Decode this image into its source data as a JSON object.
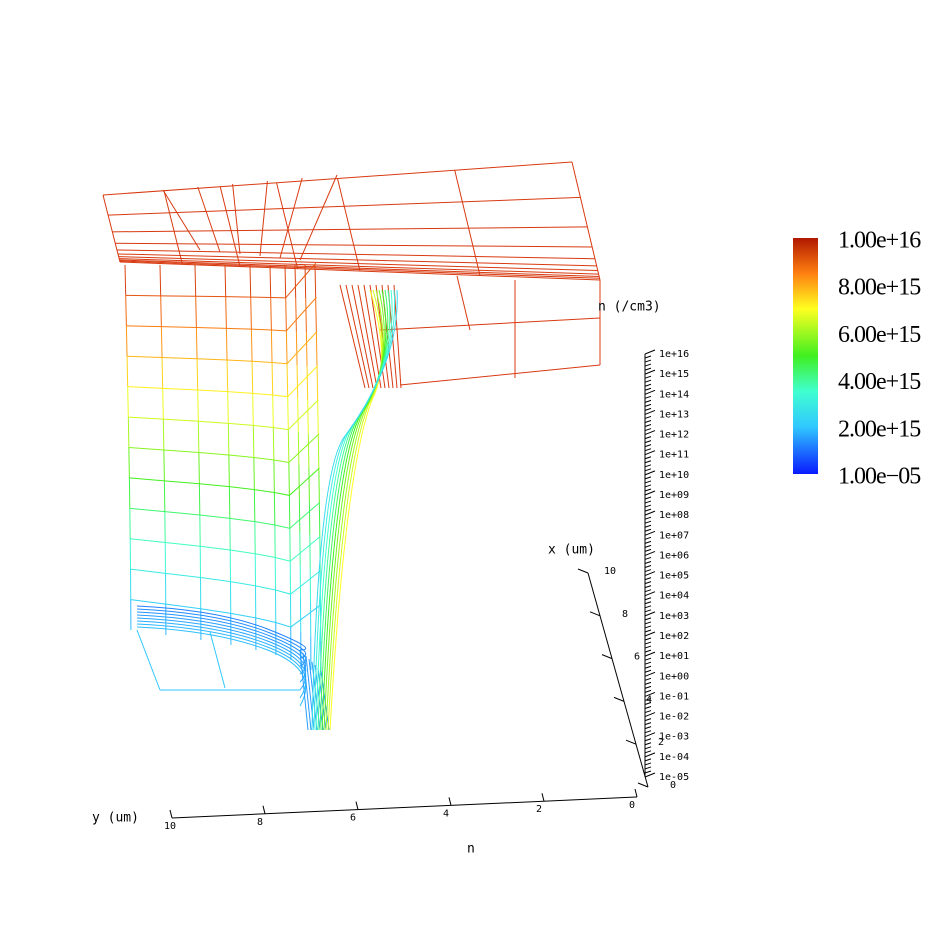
{
  "chart_data": {
    "type": "surface3d",
    "title": "n",
    "xlabel": "x (um)",
    "ylabel": "y (um)",
    "zlabel": "n (/cm3)",
    "xlim": [
      0,
      10
    ],
    "xticks": [
      0,
      2,
      4,
      6,
      8,
      10
    ],
    "ylim": [
      0,
      10
    ],
    "yticks": [
      0,
      2,
      4,
      6,
      8,
      10
    ],
    "zscale": "log",
    "zlim": [
      1e-05,
      1e+16
    ],
    "zticks": [
      {
        "value": 1e-05,
        "label": "1e-05"
      },
      {
        "value": 0.0001,
        "label": "1e-04"
      },
      {
        "value": 0.001,
        "label": "1e-03"
      },
      {
        "value": 0.01,
        "label": "1e-02"
      },
      {
        "value": 0.1,
        "label": "1e-01"
      },
      {
        "value": 1,
        "label": "1e+00"
      },
      {
        "value": 10,
        "label": "1e+01"
      },
      {
        "value": 100,
        "label": "1e+02"
      },
      {
        "value": 1000,
        "label": "1e+03"
      },
      {
        "value": 10000,
        "label": "1e+04"
      },
      {
        "value": 100000,
        "label": "1e+05"
      },
      {
        "value": 1000000,
        "label": "1e+06"
      },
      {
        "value": 10000000,
        "label": "1e+07"
      },
      {
        "value": 100000000,
        "label": "1e+08"
      },
      {
        "value": 1000000000,
        "label": "1e+09"
      },
      {
        "value": 10000000000,
        "label": "1e+10"
      },
      {
        "value": 100000000000,
        "label": "1e+11"
      },
      {
        "value": 1000000000000,
        "label": "1e+12"
      },
      {
        "value": 10000000000000,
        "label": "1e+13"
      },
      {
        "value": 100000000000000,
        "label": "1e+14"
      },
      {
        "value": 1000000000000000,
        "label": "1e+15"
      },
      {
        "value": 10000000000000000,
        "label": "1e+16"
      }
    ],
    "colorbar": {
      "lim": [
        1e-05,
        1e+16
      ],
      "ticks": [
        {
          "value": 1e+16,
          "label": "1.00e+16"
        },
        {
          "value": 8000000000000000.0,
          "label": "8.00e+15"
        },
        {
          "value": 6000000000000000.0,
          "label": "6.00e+15"
        },
        {
          "value": 4000000000000000.0,
          "label": "4.00e+15"
        },
        {
          "value": 2000000000000000.0,
          "label": "2.00e+15"
        },
        {
          "value": 1e-05,
          "label": "1.00e−05"
        }
      ]
    }
  }
}
